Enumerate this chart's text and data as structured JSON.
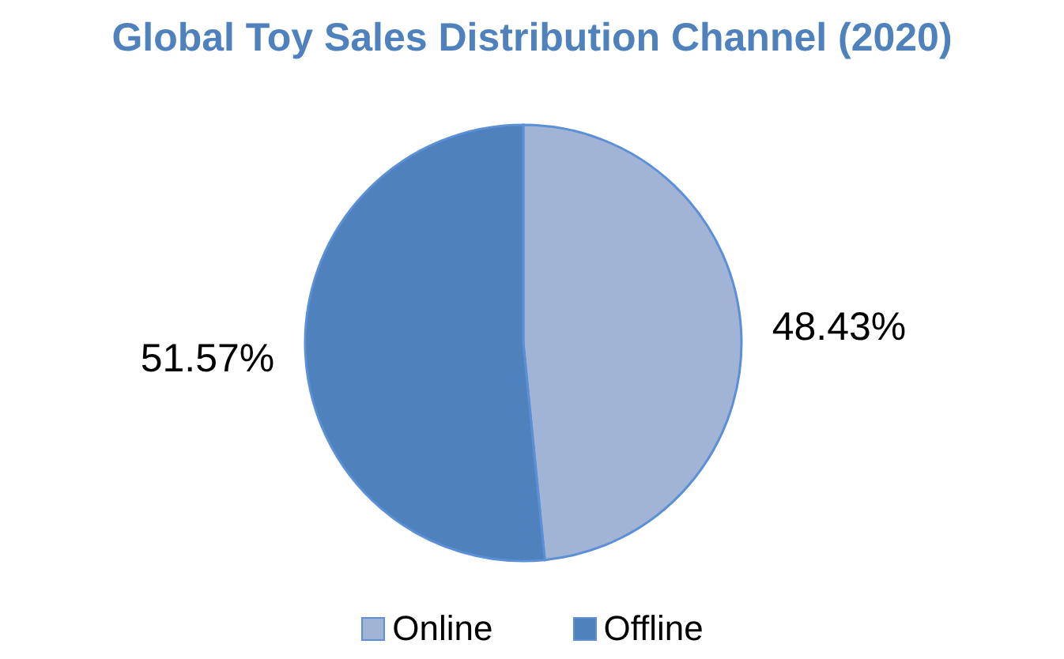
{
  "chart_data": {
    "type": "pie",
    "title": "Global Toy Sales Distribution Channel (2020)",
    "categories": [
      "Online",
      "Offline"
    ],
    "values": [
      48.43,
      51.57
    ],
    "value_labels": [
      "48.43%",
      "51.57%"
    ],
    "colors": [
      "#a2b4d6",
      "#4f81bd"
    ],
    "legend": "bottom"
  }
}
